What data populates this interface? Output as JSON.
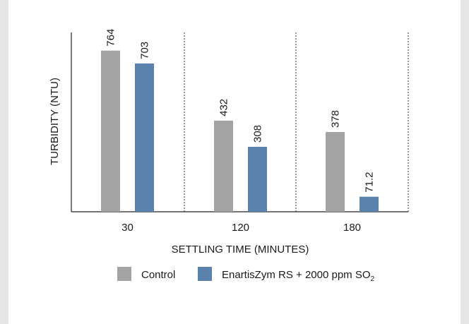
{
  "chart_data": {
    "type": "bar",
    "categories": [
      "30",
      "120",
      "180"
    ],
    "series": [
      {
        "name": "Control",
        "values": [
          764,
          432,
          378
        ],
        "color": "#a3a3a3"
      },
      {
        "name": "EnartisZym RS + 2000 ppm SO2",
        "values": [
          703,
          308,
          71.2
        ],
        "color": "#5b82ad"
      }
    ],
    "value_labels": [
      [
        "764",
        "432",
        "378"
      ],
      [
        "703",
        "308",
        "71.2"
      ]
    ],
    "xlabel": "SETTLING TIME (MINUTES)",
    "ylabel": "TURBIDITY (NTU)",
    "ylim": [
      0,
      850
    ],
    "grid": false,
    "legend": "bottom",
    "legend_labels": {
      "control": "Control",
      "treated_main": "EnartisZym RS + 2000 ppm SO",
      "treated_sub": "2"
    }
  }
}
